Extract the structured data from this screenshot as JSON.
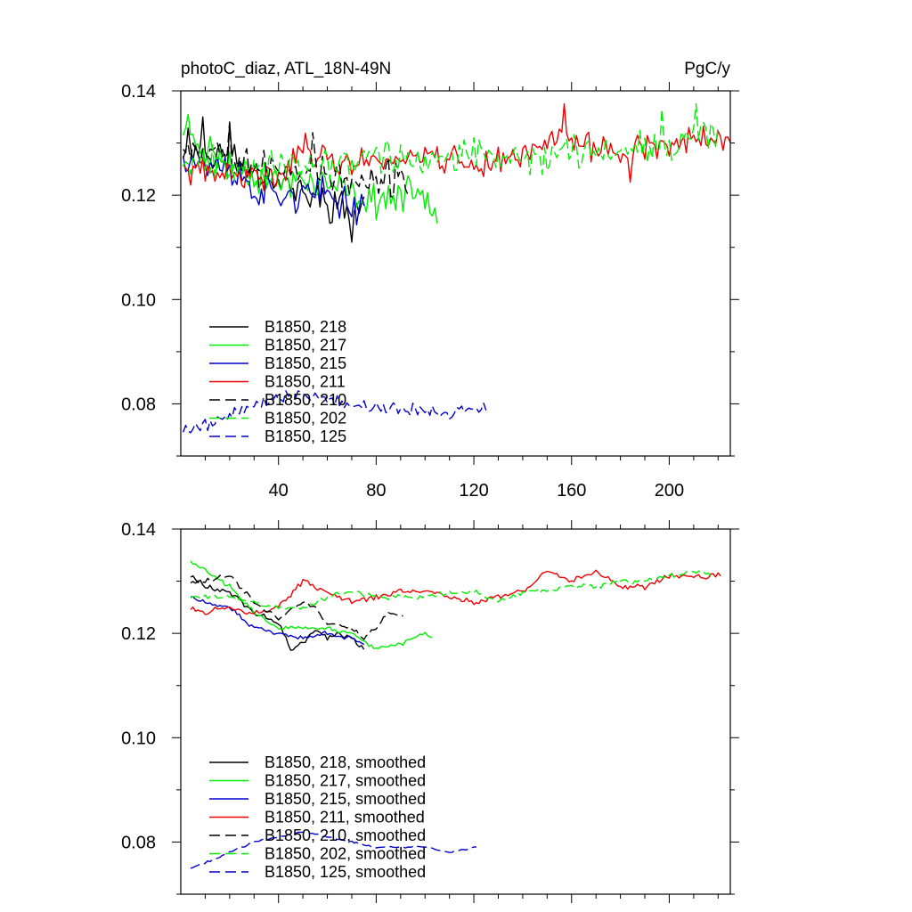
{
  "chart_data": [
    {
      "type": "line",
      "title": "photoC_diaz, ATL_18N-49N",
      "units": "PgC/y",
      "xlim": [
        0,
        225
      ],
      "ylim": [
        0.07,
        0.14
      ],
      "xticks": [
        40,
        80,
        120,
        160,
        200
      ],
      "xtick_labels": [
        "40",
        "80",
        "120",
        "160",
        "200"
      ],
      "yticks": [
        0.08,
        0.1,
        0.12,
        0.14
      ],
      "ytick_labels": [
        "0.08",
        "0.10",
        "0.12",
        "0.14"
      ],
      "legend_position": "bottom-left",
      "series": [
        {
          "name": "B1850, 218",
          "color": "#000000",
          "dash": "solid",
          "start": 1,
          "n": 75,
          "mean": [
            [
              1,
              0.131
            ],
            [
              10,
              0.128
            ],
            [
              20,
              0.127
            ],
            [
              30,
              0.125
            ],
            [
              40,
              0.123
            ],
            [
              50,
              0.12
            ],
            [
              60,
              0.119
            ],
            [
              70,
              0.117
            ],
            [
              75,
              0.118
            ]
          ],
          "noise": 0.0045,
          "seed": 11,
          "spikes": [
            [
              9,
              0.135
            ],
            [
              20,
              0.134
            ],
            [
              70,
              0.111
            ]
          ]
        },
        {
          "name": "B1850, 217",
          "color": "#00ee00",
          "dash": "solid",
          "start": 1,
          "n": 105,
          "mean": [
            [
              1,
              0.133
            ],
            [
              10,
              0.129
            ],
            [
              20,
              0.126
            ],
            [
              30,
              0.124
            ],
            [
              40,
              0.122
            ],
            [
              50,
              0.123
            ],
            [
              60,
              0.122
            ],
            [
              70,
              0.12
            ],
            [
              80,
              0.119
            ],
            [
              90,
              0.12
            ],
            [
              100,
              0.12
            ],
            [
              105,
              0.118
            ]
          ],
          "noise": 0.004,
          "seed": 23,
          "spikes": [
            [
              3,
              0.1355
            ]
          ]
        },
        {
          "name": "B1850, 215",
          "color": "#0000cc",
          "dash": "solid",
          "start": 1,
          "n": 75,
          "mean": [
            [
              1,
              0.128
            ],
            [
              10,
              0.126
            ],
            [
              20,
              0.125
            ],
            [
              25,
              0.123
            ],
            [
              30,
              0.121
            ],
            [
              40,
              0.12
            ],
            [
              50,
              0.12
            ],
            [
              60,
              0.12
            ],
            [
              70,
              0.118
            ],
            [
              75,
              0.118
            ]
          ],
          "noise": 0.004,
          "seed": 37,
          "spikes": []
        },
        {
          "name": "B1850, 211",
          "color": "#ee0000",
          "dash": "solid",
          "start": 1,
          "n": 225,
          "mean": [
            [
              1,
              0.125
            ],
            [
              10,
              0.124
            ],
            [
              20,
              0.124
            ],
            [
              30,
              0.123
            ],
            [
              40,
              0.124
            ],
            [
              50,
              0.129
            ],
            [
              60,
              0.127
            ],
            [
              70,
              0.126
            ],
            [
              80,
              0.127
            ],
            [
              90,
              0.127
            ],
            [
              100,
              0.128
            ],
            [
              110,
              0.127
            ],
            [
              120,
              0.126
            ],
            [
              130,
              0.126
            ],
            [
              140,
              0.128
            ],
            [
              150,
              0.131
            ],
            [
              160,
              0.13
            ],
            [
              170,
              0.129
            ],
            [
              180,
              0.129
            ],
            [
              190,
              0.129
            ],
            [
              200,
              0.13
            ],
            [
              210,
              0.131
            ],
            [
              220,
              0.131
            ],
            [
              225,
              0.13
            ]
          ],
          "noise": 0.0035,
          "seed": 41,
          "spikes": [
            [
              157,
              0.1375
            ],
            [
              184,
              0.1225
            ]
          ]
        },
        {
          "name": "B1850, 210",
          "color": "#000000",
          "dash": "dash",
          "start": 1,
          "n": 93,
          "mean": [
            [
              1,
              0.13
            ],
            [
              10,
              0.129
            ],
            [
              20,
              0.129
            ],
            [
              30,
              0.126
            ],
            [
              40,
              0.124
            ],
            [
              50,
              0.126
            ],
            [
              60,
              0.124
            ],
            [
              70,
              0.122
            ],
            [
              80,
              0.122
            ],
            [
              90,
              0.124
            ],
            [
              93,
              0.123
            ]
          ],
          "noise": 0.0045,
          "seed": 53,
          "spikes": [
            [
              20,
              0.134
            ],
            [
              54,
              0.132
            ]
          ]
        },
        {
          "name": "B1850, 202",
          "color": "#00ee00",
          "dash": "dash",
          "start": 1,
          "n": 220,
          "mean": [
            [
              1,
              0.127
            ],
            [
              10,
              0.127
            ],
            [
              20,
              0.126
            ],
            [
              30,
              0.126
            ],
            [
              40,
              0.125
            ],
            [
              50,
              0.125
            ],
            [
              60,
              0.126
            ],
            [
              70,
              0.127
            ],
            [
              80,
              0.127
            ],
            [
              90,
              0.127
            ],
            [
              100,
              0.127
            ],
            [
              110,
              0.127
            ],
            [
              120,
              0.128
            ],
            [
              130,
              0.127
            ],
            [
              140,
              0.127
            ],
            [
              150,
              0.128
            ],
            [
              160,
              0.128
            ],
            [
              170,
              0.129
            ],
            [
              180,
              0.129
            ],
            [
              190,
              0.13
            ],
            [
              200,
              0.13
            ],
            [
              210,
              0.131
            ],
            [
              220,
              0.132
            ]
          ],
          "noise": 0.004,
          "seed": 67,
          "spikes": [
            [
              197,
              0.1365
            ],
            [
              211,
              0.1375
            ]
          ]
        },
        {
          "name": "B1850, 125",
          "color": "#0000cc",
          "dash": "dash",
          "start": 1,
          "n": 125,
          "mean": [
            [
              1,
              0.075
            ],
            [
              10,
              0.076
            ],
            [
              20,
              0.078
            ],
            [
              30,
              0.08
            ],
            [
              40,
              0.081
            ],
            [
              50,
              0.082
            ],
            [
              60,
              0.081
            ],
            [
              70,
              0.08
            ],
            [
              80,
              0.079
            ],
            [
              90,
              0.079
            ],
            [
              100,
              0.079
            ],
            [
              110,
              0.078
            ],
            [
              120,
              0.079
            ],
            [
              125,
              0.079
            ]
          ],
          "noise": 0.0015,
          "seed": 79,
          "spikes": []
        }
      ]
    },
    {
      "type": "line",
      "title": "",
      "units": "",
      "xlim": [
        0,
        225
      ],
      "ylim": [
        0.07,
        0.14
      ],
      "xticks": [
        40,
        80,
        120,
        160,
        200
      ],
      "xtick_labels": [],
      "yticks": [
        0.08,
        0.1,
        0.12,
        0.14
      ],
      "ytick_labels": [
        "0.08",
        "0.10",
        "0.12",
        "0.14"
      ],
      "legend_position": "bottom-left",
      "series": [
        {
          "name": "B1850, 218, smoothed",
          "color": "#000000",
          "dash": "solid",
          "start": 4,
          "n": 72,
          "mean": [
            [
              4,
              0.131
            ],
            [
              10,
              0.129
            ],
            [
              20,
              0.128
            ],
            [
              30,
              0.124
            ],
            [
              40,
              0.122
            ],
            [
              45,
              0.117
            ],
            [
              50,
              0.118
            ],
            [
              55,
              0.121
            ],
            [
              60,
              0.119
            ],
            [
              65,
              0.12
            ],
            [
              70,
              0.119
            ],
            [
              75,
              0.117
            ]
          ],
          "noise": 0.0006,
          "seed": 111,
          "spikes": []
        },
        {
          "name": "B1850, 217, smoothed",
          "color": "#00ee00",
          "dash": "solid",
          "start": 4,
          "n": 100,
          "mean": [
            [
              4,
              0.134
            ],
            [
              10,
              0.132
            ],
            [
              20,
              0.129
            ],
            [
              30,
              0.124
            ],
            [
              40,
              0.121
            ],
            [
              50,
              0.121
            ],
            [
              60,
              0.121
            ],
            [
              70,
              0.12
            ],
            [
              80,
              0.117
            ],
            [
              90,
              0.118
            ],
            [
              100,
              0.12
            ],
            [
              103,
              0.119
            ]
          ],
          "noise": 0.0005,
          "seed": 123,
          "spikes": []
        },
        {
          "name": "B1850, 215, smoothed",
          "color": "#0000cc",
          "dash": "solid",
          "start": 4,
          "n": 72,
          "mean": [
            [
              4,
              0.127
            ],
            [
              10,
              0.126
            ],
            [
              20,
              0.125
            ],
            [
              25,
              0.123
            ],
            [
              30,
              0.121
            ],
            [
              40,
              0.12
            ],
            [
              50,
              0.119
            ],
            [
              60,
              0.12
            ],
            [
              70,
              0.119
            ],
            [
              75,
              0.118
            ]
          ],
          "noise": 0.0005,
          "seed": 137,
          "spikes": []
        },
        {
          "name": "B1850, 211, smoothed",
          "color": "#ee0000",
          "dash": "solid",
          "start": 4,
          "n": 218,
          "mean": [
            [
              4,
              0.125
            ],
            [
              10,
              0.124
            ],
            [
              20,
              0.125
            ],
            [
              30,
              0.124
            ],
            [
              40,
              0.125
            ],
            [
              50,
              0.13
            ],
            [
              60,
              0.128
            ],
            [
              70,
              0.126
            ],
            [
              80,
              0.127
            ],
            [
              90,
              0.128
            ],
            [
              100,
              0.128
            ],
            [
              110,
              0.127
            ],
            [
              120,
              0.126
            ],
            [
              130,
              0.127
            ],
            [
              140,
              0.128
            ],
            [
              150,
              0.132
            ],
            [
              160,
              0.13
            ],
            [
              170,
              0.132
            ],
            [
              180,
              0.129
            ],
            [
              190,
              0.129
            ],
            [
              200,
              0.131
            ],
            [
              210,
              0.131
            ],
            [
              220,
              0.131
            ],
            [
              222,
              0.131
            ]
          ],
          "noise": 0.0007,
          "seed": 141,
          "spikes": []
        },
        {
          "name": "B1850, 210, smoothed",
          "color": "#000000",
          "dash": "dash",
          "start": 4,
          "n": 88,
          "mean": [
            [
              4,
              0.13
            ],
            [
              10,
              0.13
            ],
            [
              20,
              0.131
            ],
            [
              30,
              0.126
            ],
            [
              40,
              0.123
            ],
            [
              50,
              0.126
            ],
            [
              55,
              0.125
            ],
            [
              60,
              0.122
            ],
            [
              70,
              0.121
            ],
            [
              75,
              0.119
            ],
            [
              80,
              0.121
            ],
            [
              85,
              0.124
            ],
            [
              92,
              0.123
            ]
          ],
          "noise": 0.0006,
          "seed": 153,
          "spikes": []
        },
        {
          "name": "B1850, 202, smoothed",
          "color": "#00ee00",
          "dash": "dash",
          "start": 4,
          "n": 215,
          "mean": [
            [
              4,
              0.127
            ],
            [
              10,
              0.127
            ],
            [
              20,
              0.127
            ],
            [
              30,
              0.126
            ],
            [
              40,
              0.125
            ],
            [
              50,
              0.125
            ],
            [
              60,
              0.127
            ],
            [
              70,
              0.128
            ],
            [
              80,
              0.127
            ],
            [
              90,
              0.127
            ],
            [
              100,
              0.127
            ],
            [
              110,
              0.128
            ],
            [
              120,
              0.128
            ],
            [
              130,
              0.126
            ],
            [
              140,
              0.128
            ],
            [
              150,
              0.128
            ],
            [
              160,
              0.129
            ],
            [
              170,
              0.129
            ],
            [
              180,
              0.13
            ],
            [
              190,
              0.13
            ],
            [
              200,
              0.131
            ],
            [
              210,
              0.132
            ],
            [
              218,
              0.131
            ]
          ],
          "noise": 0.0006,
          "seed": 167,
          "spikes": []
        },
        {
          "name": "B1850, 125, smoothed",
          "color": "#0000cc",
          "dash": "dash",
          "start": 4,
          "n": 118,
          "mean": [
            [
              4,
              0.075
            ],
            [
              10,
              0.076
            ],
            [
              20,
              0.078
            ],
            [
              30,
              0.08
            ],
            [
              40,
              0.081
            ],
            [
              50,
              0.082
            ],
            [
              60,
              0.081
            ],
            [
              70,
              0.08
            ],
            [
              80,
              0.079
            ],
            [
              90,
              0.079
            ],
            [
              100,
              0.079
            ],
            [
              110,
              0.078
            ],
            [
              121,
              0.079
            ]
          ],
          "noise": 0.0002,
          "seed": 179,
          "spikes": []
        }
      ]
    }
  ]
}
